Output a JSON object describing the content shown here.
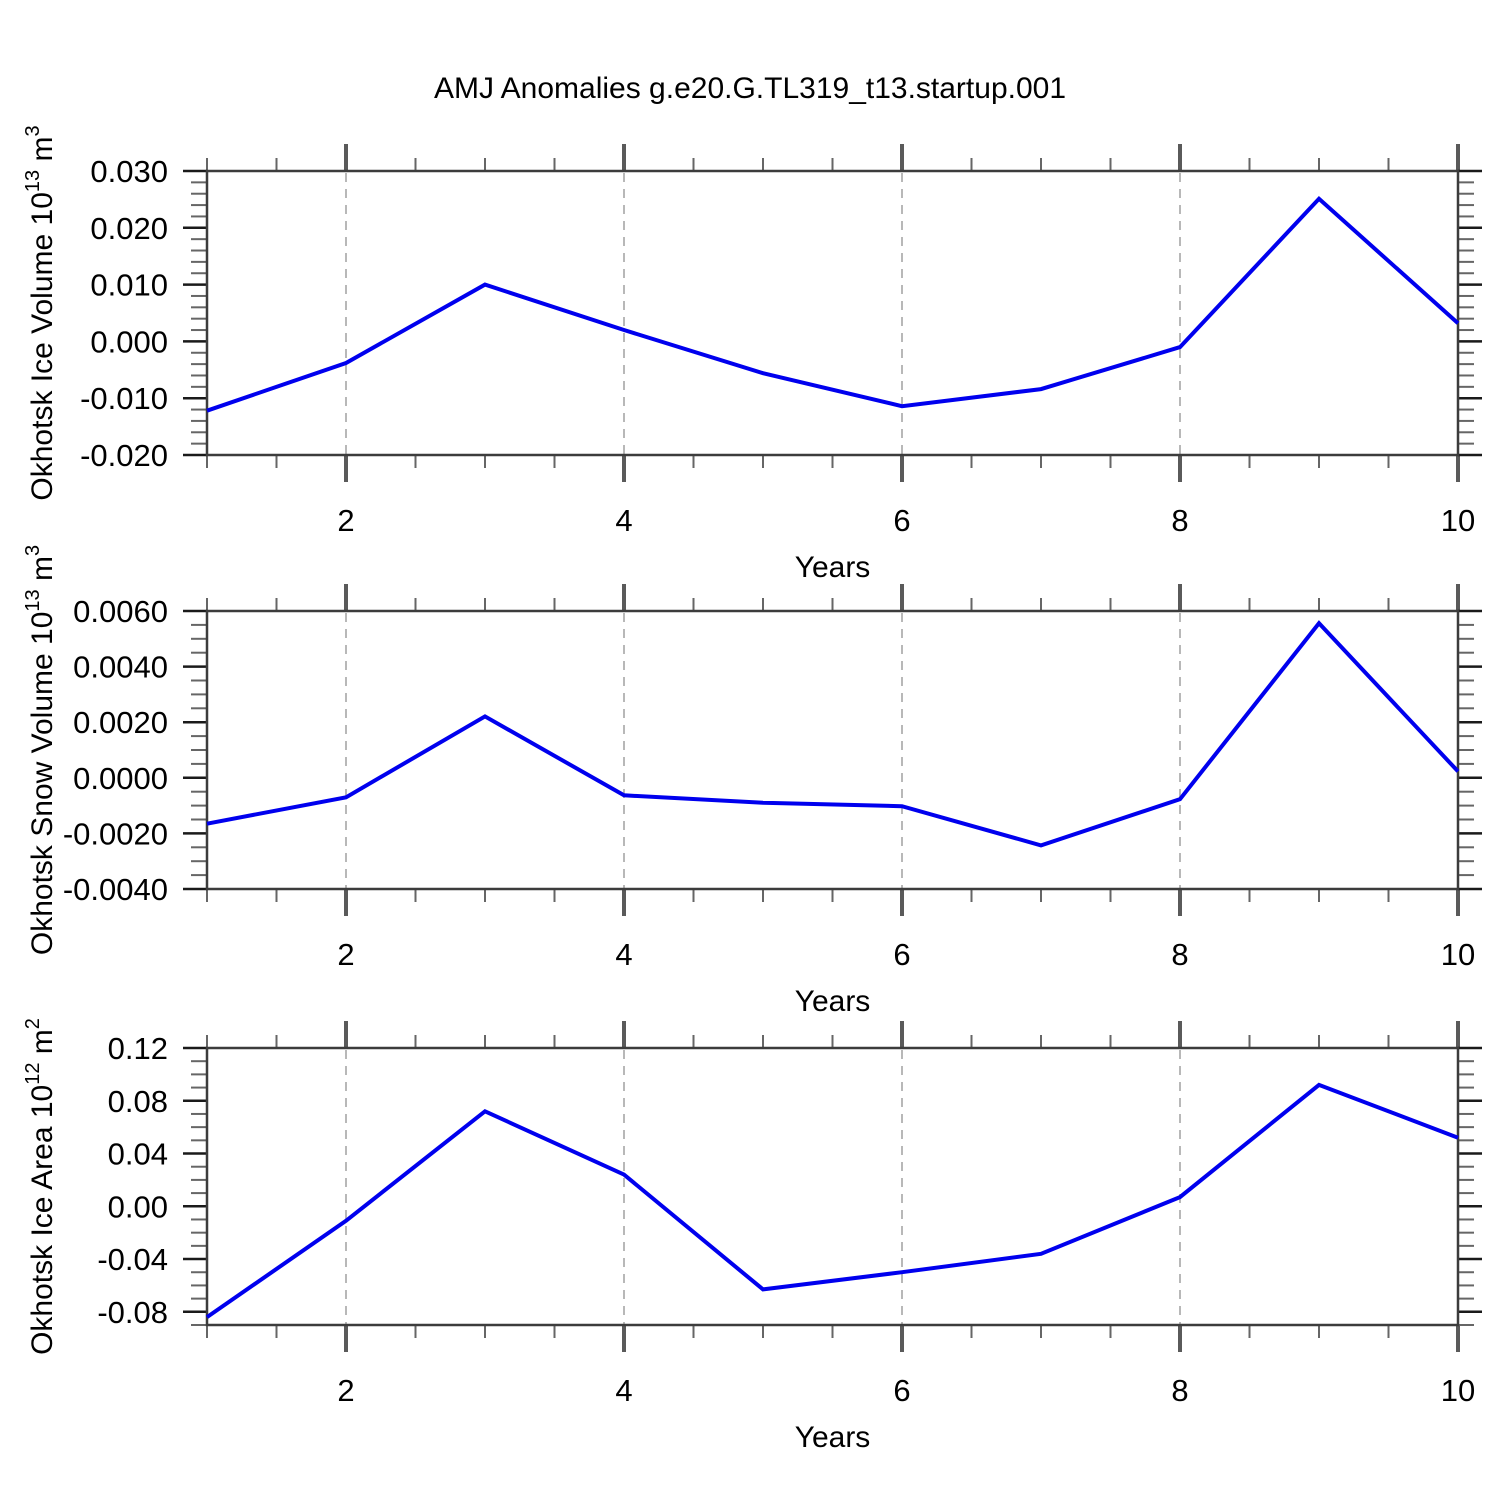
{
  "title": "AMJ Anomalies g.e20.G.TL319_t13.startup.001",
  "colors": {
    "line": "#0000EE",
    "grid": "#B8B8B8",
    "axis": "#3C3C3C",
    "tick_major": "#1A1A1A",
    "tick_minor": "#666666",
    "tick_year_major": "#5A5A5A",
    "text": "#000000"
  },
  "chart_data": [
    {
      "type": "line",
      "ylabel_parts": {
        "base": "Okhotsk Ice Volume 10",
        "sup1": "13",
        "mid": " m",
        "sup2": "3"
      },
      "xlabel": "Years",
      "x": [
        1,
        2,
        3,
        4,
        5,
        6,
        7,
        8,
        9,
        10
      ],
      "values": [
        -0.0122,
        -0.0038,
        0.01,
        0.002,
        -0.0056,
        -0.0114,
        -0.0084,
        -0.001,
        0.0251,
        0.0032
      ],
      "xlim": [
        1,
        10
      ],
      "ylim": [
        -0.02,
        0.03
      ],
      "y_tick_values": [
        0.03,
        0.02,
        0.01,
        0.0,
        -0.01,
        -0.02
      ],
      "y_tick_labels": [
        "0.030",
        "0.020",
        "0.010",
        "0.000",
        "-0.010",
        "-0.020"
      ],
      "y_minor_step": 0.002,
      "x_tick_values": [
        2,
        4,
        6,
        8,
        10
      ],
      "x_tick_labels": [
        "2",
        "4",
        "6",
        "8",
        "10"
      ],
      "x_minor_step": 0.5,
      "grid_x": [
        2,
        4,
        6,
        8
      ],
      "grid_on": "vertical-dashed",
      "legend": "none"
    },
    {
      "type": "line",
      "ylabel_parts": {
        "base": "Okhotsk Snow Volume 10",
        "sup1": "13",
        "mid": " m",
        "sup2": "3"
      },
      "xlabel": "Years",
      "x": [
        1,
        2,
        3,
        4,
        5,
        6,
        7,
        8,
        9,
        10
      ],
      "values": [
        -0.00165,
        -0.0007,
        0.00221,
        -0.00063,
        -0.0009,
        -0.00102,
        -0.00243,
        -0.00077,
        0.00556,
        0.00023
      ],
      "xlim": [
        1,
        10
      ],
      "ylim": [
        -0.004,
        0.006
      ],
      "y_tick_values": [
        0.006,
        0.004,
        0.002,
        0.0,
        -0.002,
        -0.004
      ],
      "y_tick_labels": [
        "0.0060",
        "0.0040",
        "0.0020",
        "0.0000",
        "-0.0020",
        "-0.0040"
      ],
      "y_minor_step": 0.0005,
      "x_tick_values": [
        2,
        4,
        6,
        8,
        10
      ],
      "x_tick_labels": [
        "2",
        "4",
        "6",
        "8",
        "10"
      ],
      "x_minor_step": 0.5,
      "grid_x": [
        2,
        4,
        6,
        8
      ],
      "grid_on": "vertical-dashed",
      "legend": "none"
    },
    {
      "type": "line",
      "ylabel_parts": {
        "base": "Okhotsk Ice Area 10",
        "sup1": "12",
        "mid": " m",
        "sup2": "2"
      },
      "xlabel": "Years",
      "x": [
        1,
        2,
        3,
        4,
        5,
        6,
        7,
        8,
        9,
        10
      ],
      "values": [
        -0.084,
        -0.011,
        0.072,
        0.024,
        -0.063,
        -0.05,
        -0.036,
        0.007,
        0.092,
        0.052
      ],
      "xlim": [
        1,
        10
      ],
      "ylim": [
        -0.09,
        0.12
      ],
      "y_tick_values": [
        0.12,
        0.08,
        0.04,
        0.0,
        -0.04,
        -0.08
      ],
      "y_tick_labels": [
        "0.12",
        "0.08",
        "0.04",
        "0.00",
        "-0.04",
        "-0.08"
      ],
      "y_minor_step": 0.01,
      "x_tick_values": [
        2,
        4,
        6,
        8,
        10
      ],
      "x_tick_labels": [
        "2",
        "4",
        "6",
        "8",
        "10"
      ],
      "x_minor_step": 0.5,
      "grid_x": [
        2,
        4,
        6,
        8
      ],
      "grid_on": "vertical-dashed",
      "legend": "none"
    }
  ]
}
